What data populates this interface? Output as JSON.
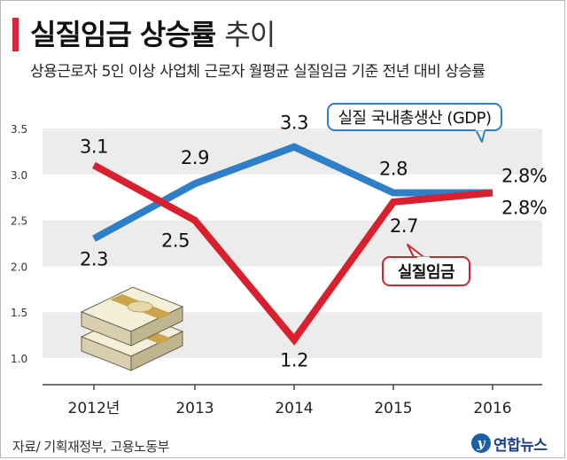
{
  "header": {
    "title_main": "실질임금 상승률",
    "title_light": "추이",
    "subtitle": "상용근로자 5인 이상 사업체 근로자 월평균 실질임금 기준 전년 대비 상승률"
  },
  "footer": {
    "source": "자료/ 기획재정부, 고용노동부",
    "logo_text": "연합뉴스",
    "logo_mark": "y"
  },
  "chart_data": {
    "type": "line",
    "categories": [
      "2012년",
      "2013",
      "2014",
      "2015",
      "2016"
    ],
    "ylim": [
      1.0,
      3.5
    ],
    "yticks": [
      "1.0",
      "1.5",
      "2.0",
      "2.5",
      "3.0",
      "3.5"
    ],
    "grid": "alternating horizontal bands",
    "series": [
      {
        "name": "실질 국내총생산 (GDP)",
        "color": "#2f7fc8",
        "values": [
          2.3,
          2.9,
          3.3,
          2.8,
          2.8
        ],
        "labels": [
          "2.3",
          "2.9",
          "3.3",
          "2.8",
          "2.8%"
        ]
      },
      {
        "name": "실질임금",
        "color": "#d9202e",
        "values": [
          3.1,
          2.5,
          1.2,
          2.7,
          2.8
        ],
        "labels": [
          "3.1",
          "2.5",
          "1.2",
          "2.7",
          "2.8%"
        ]
      }
    ]
  }
}
